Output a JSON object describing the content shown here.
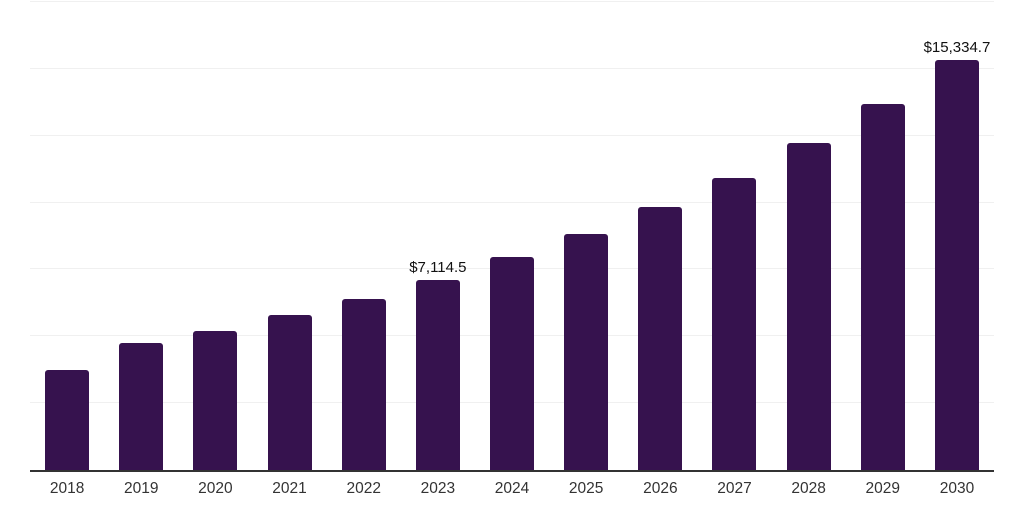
{
  "chart_data": {
    "type": "bar",
    "title": "",
    "xlabel": "",
    "ylabel": "",
    "categories": [
      "2018",
      "2019",
      "2020",
      "2021",
      "2022",
      "2023",
      "2024",
      "2025",
      "2026",
      "2027",
      "2028",
      "2029",
      "2030"
    ],
    "values": [
      3740,
      4750,
      5200,
      5800,
      6400,
      7114.5,
      7950,
      8820,
      9820,
      10930,
      12240,
      13700,
      15334.7
    ],
    "annotations": [
      {
        "index": 5,
        "text": "$7,114.5"
      },
      {
        "index": 12,
        "text": "$15,334.7"
      }
    ],
    "ylim": [
      0,
      17500
    ],
    "gridline_step": 2500,
    "grid": "horizontal-light",
    "legend": "none",
    "y_axis_labels_visible": false,
    "value_prefix": "$"
  },
  "colors": {
    "bar": "#36124e",
    "axis_line": "#333333",
    "gridline": "#f0f0f0",
    "data_label": "#111111",
    "tick_label": "#333333",
    "background": "#ffffff"
  }
}
